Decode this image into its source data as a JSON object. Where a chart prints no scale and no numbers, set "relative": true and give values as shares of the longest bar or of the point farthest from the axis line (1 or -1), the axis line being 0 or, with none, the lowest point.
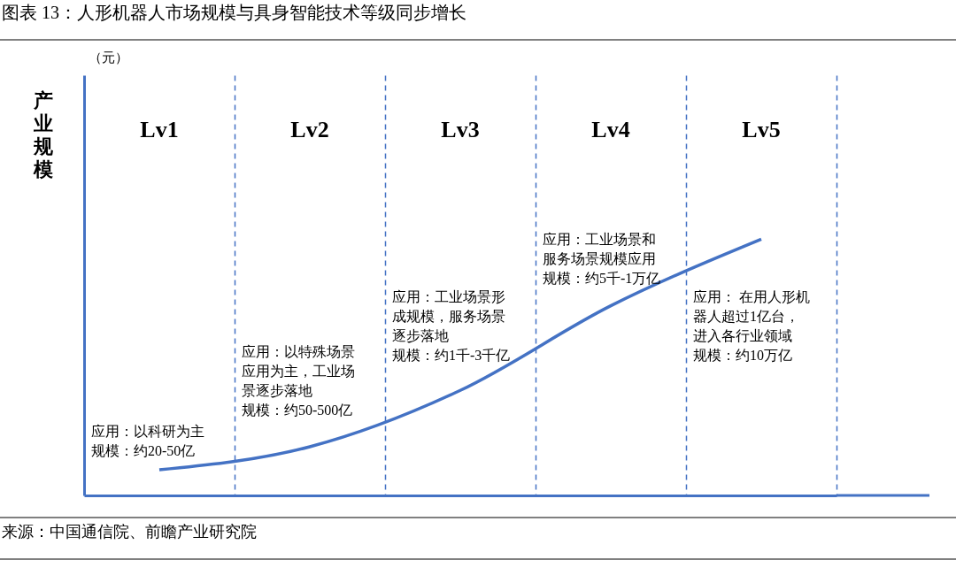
{
  "chart_data": {
    "type": "line",
    "title": "图表 13：人形机器人市场规模与具身智能技术等级同步增长",
    "ylabel": "产业规模",
    "categories": [
      "Lv1",
      "Lv2",
      "Lv3",
      "Lv4",
      "Lv5"
    ],
    "values": [
      0.1,
      0.19,
      0.41,
      0.74,
      1
    ],
    "color": "#4472c4",
    "relative": true,
    "grid": "x",
    "tick_labels": "x",
    "marker": "none",
    "line_style": "solid",
    "annotations": [
      "（元）",
      "应用：以科研为主",
      "规模：约20-50亿",
      "应用：以特殊场景应用为主，工业场景逐步落地",
      "规模：约50-500亿",
      "应用：工业场景形成规模，服务场景逐步落地",
      "规模：约1千-3千亿",
      "应用：工业场景和服务场景规模应用",
      "规模：约5千-1万亿",
      "应用： 在用人形机器人超过1亿台，进入各行业领域",
      "规模：约10万亿",
      "来源：中国通信院、前瞻产业研究院"
    ]
  }
}
